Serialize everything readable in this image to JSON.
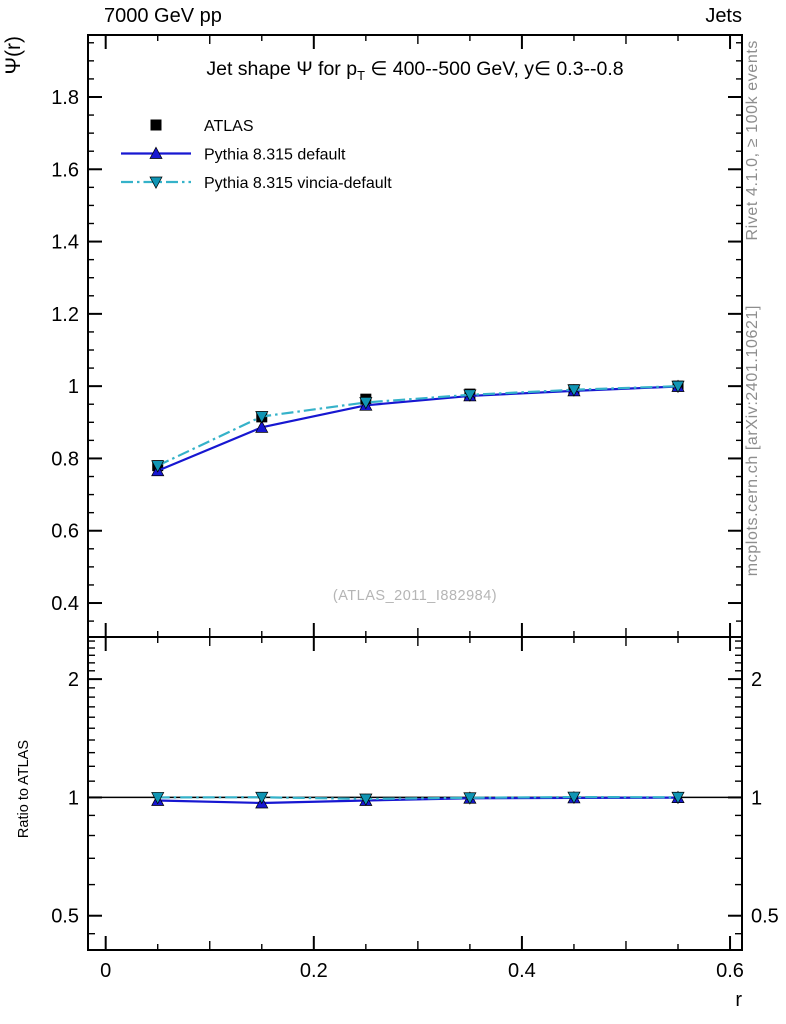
{
  "header": {
    "left": "7000 GeV pp",
    "right": "Jets"
  },
  "plot_title": {
    "part1": "Jet shape Ψ for p",
    "sub": "T",
    "part2": " ∈ 400--500 GeV, y∈ 0.3--0.8"
  },
  "watermark": "(ATLAS_2011_I882984)",
  "side_notes": {
    "top": "Rivet 4.1.0, ≥ 100k events",
    "bottom": "mcplots.cern.ch [arXiv:2401.10621]"
  },
  "colors": {
    "atlas": "#000000",
    "pythia_default": "#1717d1",
    "vincia_line": "#35b2c9",
    "vincia_marker": "#1095b4",
    "watermark_gray": "#b5b5b5",
    "note_gray": "#8e8e8e"
  },
  "chart_data": {
    "type": "line",
    "title": "Jet shape Ψ for p_T ∈ 400--500 GeV, y∈ 0.3--0.8",
    "x": [
      0.05,
      0.15,
      0.25,
      0.35,
      0.45,
      0.55
    ],
    "series": [
      {
        "name": "ATLAS",
        "marker": "square",
        "color": "#000000",
        "line": "none",
        "values": [
          0.78,
          0.915,
          0.964,
          0.978,
          0.99,
          1.0
        ]
      },
      {
        "name": "Pythia 8.315 default",
        "marker": "triangle-up",
        "color": "#1717d1",
        "line": "solid",
        "values": [
          0.766,
          0.886,
          0.947,
          0.973,
          0.987,
          0.999
        ]
      },
      {
        "name": "Pythia 8.315 vincia-default",
        "marker": "triangle-down",
        "color": "#1095b4",
        "line_color": "#35b2c9",
        "line": "dashdot",
        "values": [
          0.78,
          0.916,
          0.955,
          0.976,
          0.99,
          1.0
        ]
      }
    ],
    "ratio": {
      "baseline": 1.0,
      "series": [
        {
          "name": "Pythia 8.315 default",
          "marker": "triangle-up",
          "color": "#1717d1",
          "line": "solid",
          "values": [
            0.982,
            0.968,
            0.982,
            0.995,
            0.997,
            0.999
          ]
        },
        {
          "name": "Pythia 8.315 vincia-default",
          "marker": "triangle-down",
          "color": "#1095b4",
          "line_color": "#35b2c9",
          "line": "dashdot",
          "values": [
            1.0,
            1.001,
            0.991,
            0.998,
            1.002,
            1.001
          ]
        }
      ]
    },
    "x_axis": {
      "label": "r",
      "range": [
        -0.017,
        0.6115
      ],
      "labeled_ticks": [
        0,
        0.2,
        0.4,
        0.6
      ],
      "minor_step": 0.05,
      "grid": false
    },
    "main_y_axis": {
      "label": "Ψ(r)",
      "range": [
        0.306,
        1.9715
      ],
      "labeled_ticks": [
        0.4,
        0.6,
        0.8,
        1,
        1.2,
        1.4,
        1.6,
        1.8
      ],
      "minor_step": 0.05,
      "grid": false
    },
    "ratio_y_axis": {
      "label": "Ratio to ATLAS",
      "scale": "log",
      "range": [
        0.409,
        2.56
      ],
      "labeled_ticks": [
        0.5,
        1,
        2
      ],
      "minor_ticks": [
        0.45,
        0.6,
        0.7,
        0.8,
        0.9,
        1.1,
        1.2,
        1.3,
        1.4,
        1.5,
        1.6,
        1.7,
        1.8,
        1.9,
        2.1,
        2.2,
        2.3,
        2.4,
        2.5
      ]
    },
    "legend_position": "top-left"
  }
}
